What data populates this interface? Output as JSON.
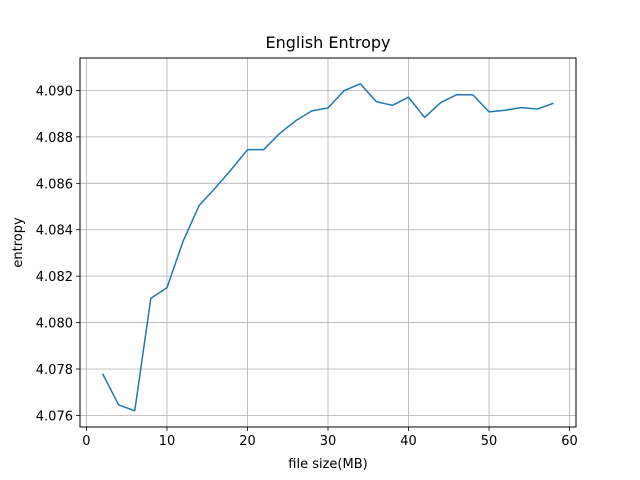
{
  "chart_data": {
    "type": "line",
    "title": "English Entropy",
    "xlabel": "file size(MB)",
    "ylabel": "entropy",
    "xlim": [
      -0.8,
      60.8
    ],
    "ylim": [
      4.0755,
      4.0914
    ],
    "grid": true,
    "x_ticks": [
      0,
      10,
      20,
      30,
      40,
      50,
      60
    ],
    "x_tick_labels": [
      "0",
      "10",
      "20",
      "30",
      "40",
      "50",
      "60"
    ],
    "y_ticks": [
      4.076,
      4.078,
      4.08,
      4.082,
      4.084,
      4.086,
      4.088,
      4.09
    ],
    "y_tick_labels": [
      "4.076",
      "4.078",
      "4.080",
      "4.082",
      "4.084",
      "4.086",
      "4.088",
      "4.090"
    ],
    "series": [
      {
        "name": "entropy",
        "color": "#1f77b4",
        "x": [
          2,
          4,
          6,
          8,
          10,
          12,
          14,
          16,
          18,
          20,
          22,
          24,
          26,
          28,
          30,
          32,
          34,
          36,
          38,
          40,
          42,
          44,
          46,
          48,
          50,
          52,
          54,
          56,
          58
        ],
        "y": [
          4.0778,
          4.07645,
          4.0762,
          4.08105,
          4.0815,
          4.0835,
          4.08505,
          4.0858,
          4.0866,
          4.08745,
          4.08745,
          4.08815,
          4.0887,
          4.08912,
          4.08925,
          4.08999,
          4.09029,
          4.08952,
          4.08936,
          4.08971,
          4.08884,
          4.08948,
          4.08982,
          4.08981,
          4.08908,
          4.08915,
          4.08926,
          4.0892,
          4.08945
        ]
      }
    ]
  }
}
